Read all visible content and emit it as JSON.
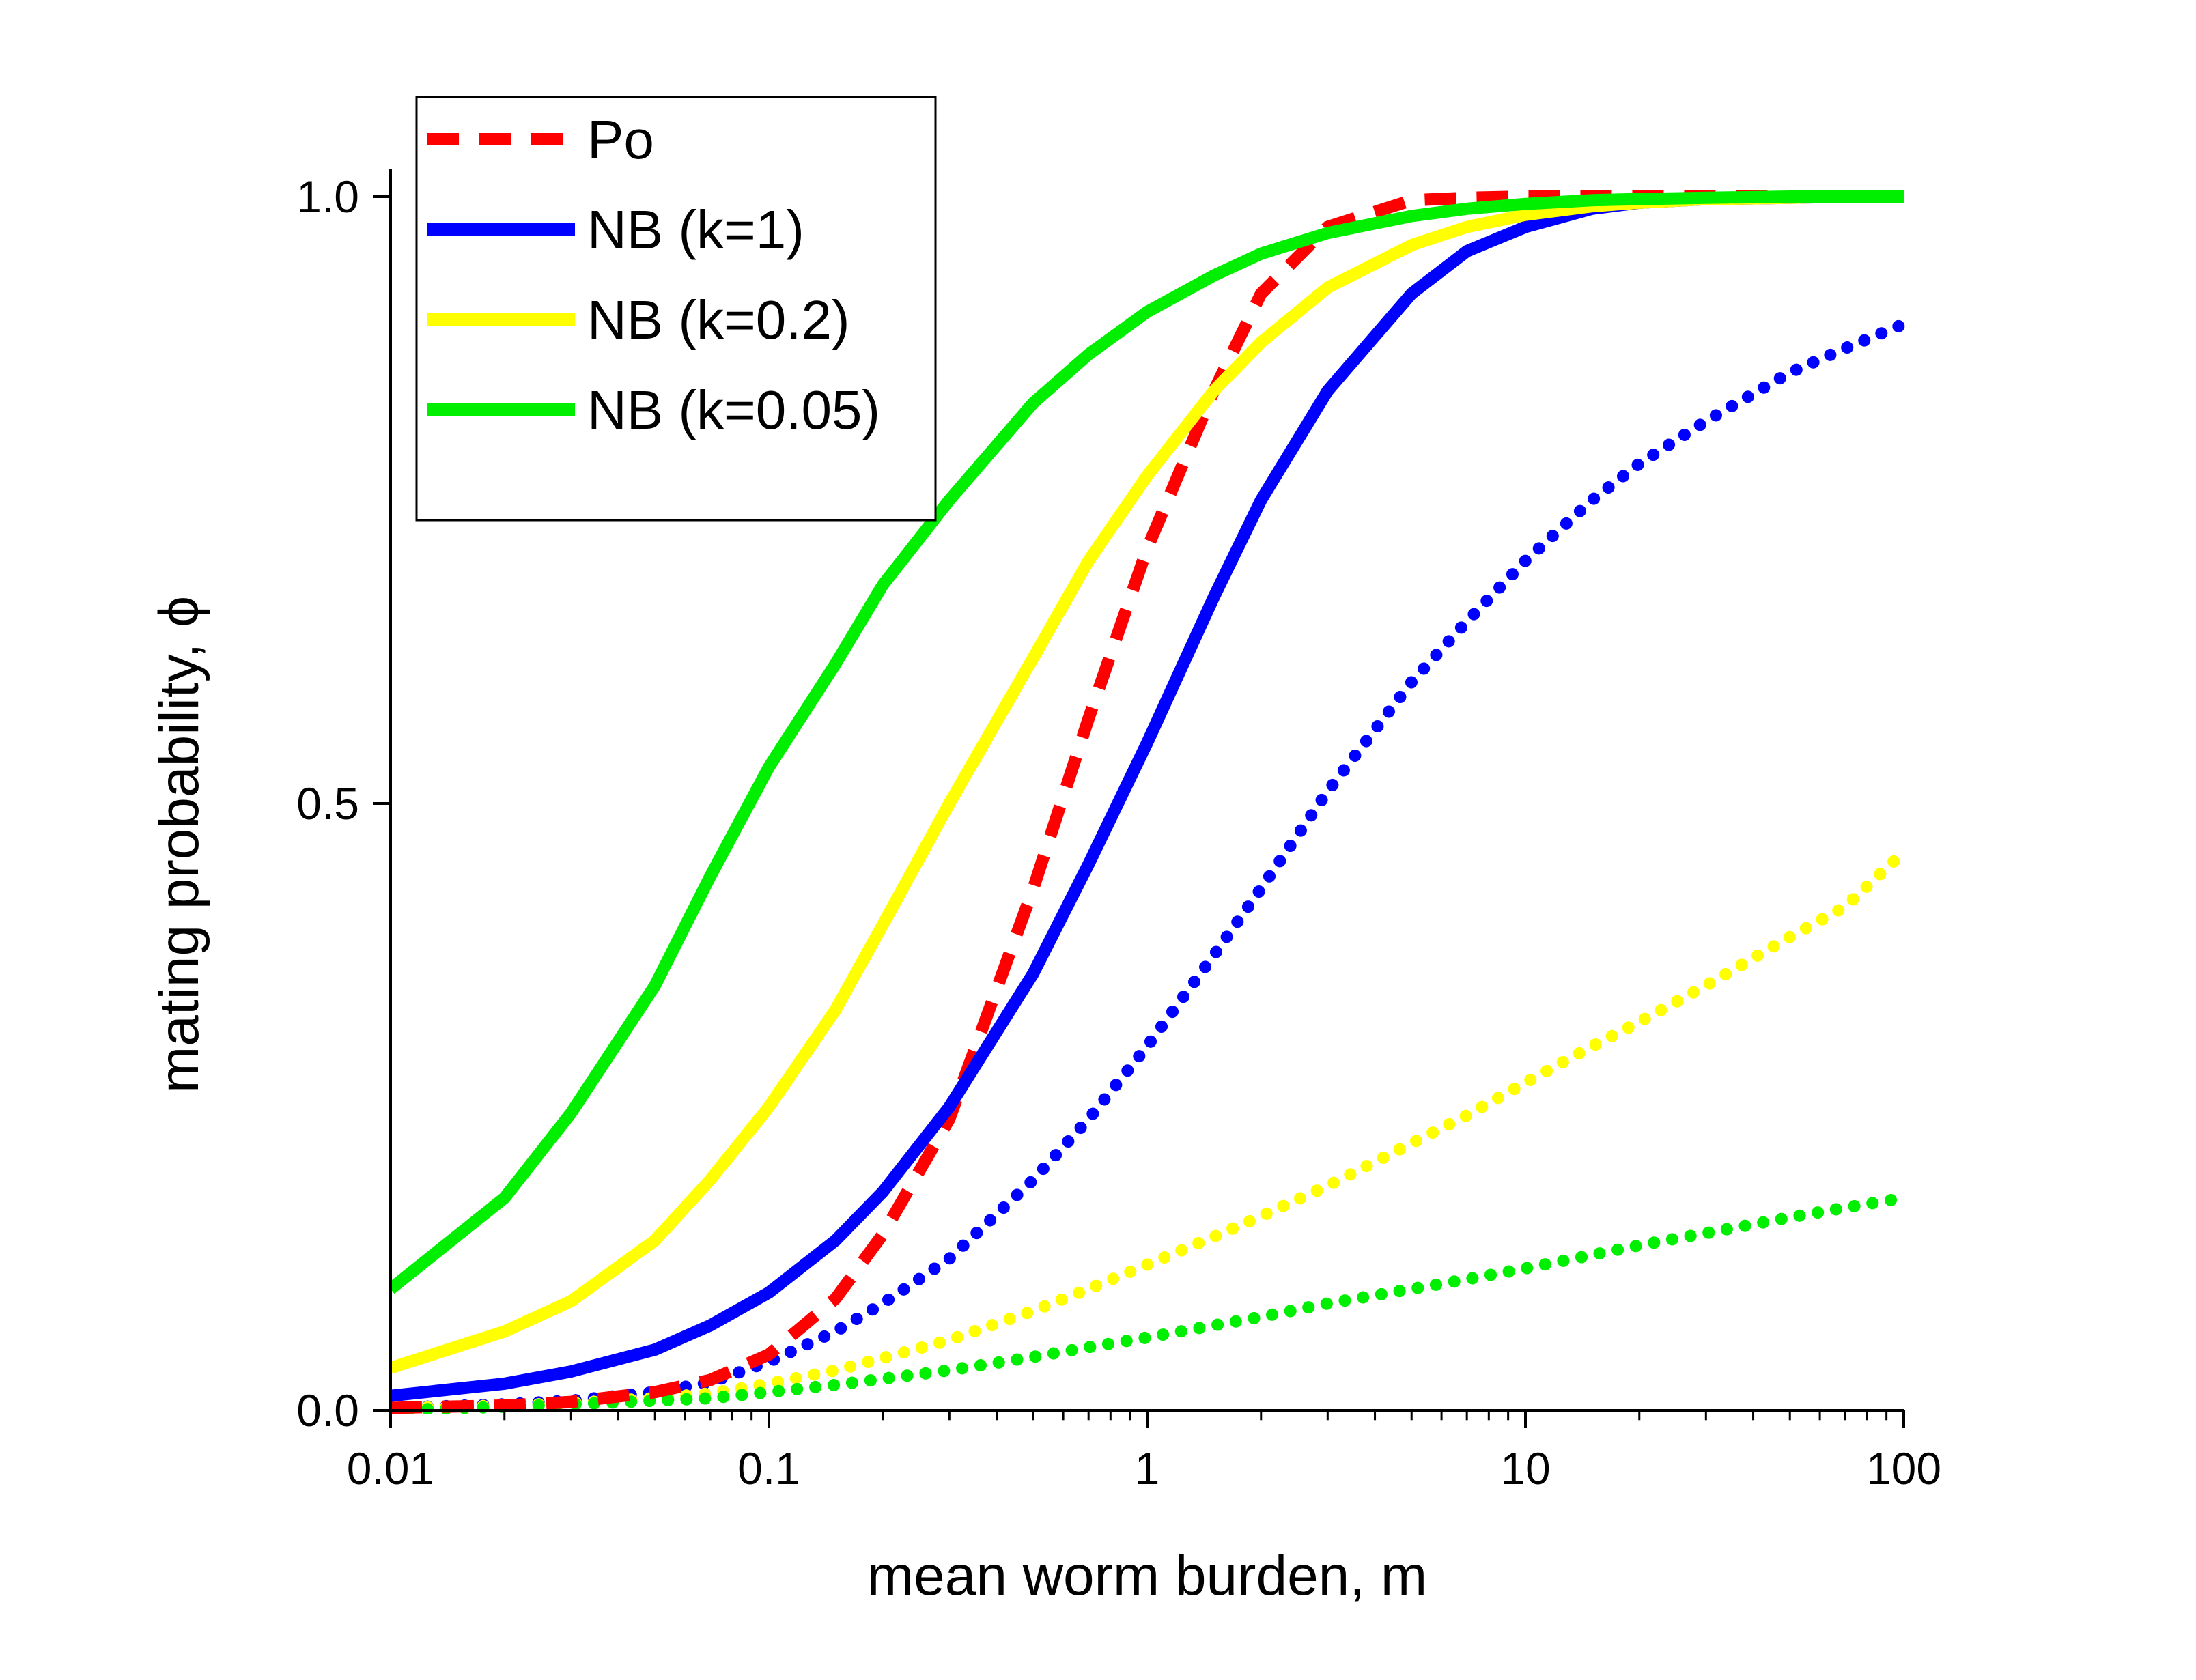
{
  "chart_data": {
    "type": "line",
    "title": "",
    "xlabel": "mean worm burden, m",
    "ylabel": "mating probability, ϕ",
    "xscale": "log",
    "xlim": [
      0.01,
      100
    ],
    "ylim": [
      0,
      1.0
    ],
    "x_ticks": [
      {
        "value": 0.01,
        "label": "0.01"
      },
      {
        "value": 0.1,
        "label": "0.1"
      },
      {
        "value": 1,
        "label": "1"
      },
      {
        "value": 10,
        "label": "10"
      },
      {
        "value": 100,
        "label": "100"
      }
    ],
    "y_ticks": [
      {
        "value": 0.0,
        "label": "0.0"
      },
      {
        "value": 0.5,
        "label": "0.5"
      },
      {
        "value": 1.0,
        "label": "1.0"
      }
    ],
    "grid": false,
    "legend_position": "top-left",
    "x": [
      0.01,
      0.02,
      0.03,
      0.05,
      0.07,
      0.1,
      0.15,
      0.2,
      0.3,
      0.5,
      0.7,
      1,
      1.5,
      2,
      3,
      5,
      7,
      10,
      15,
      20,
      30,
      50,
      70,
      100
    ],
    "series": [
      {
        "name": "Po",
        "legend": true,
        "color": "#ff0000",
        "style": "dashed",
        "values": [
          0.002,
          0.004,
          0.007,
          0.015,
          0.025,
          0.046,
          0.092,
          0.145,
          0.24,
          0.43,
          0.57,
          0.71,
          0.84,
          0.92,
          0.975,
          0.997,
          0.999,
          1.0,
          1.0,
          1.0,
          1.0,
          1.0,
          1.0,
          1.0
        ]
      },
      {
        "name": "NB (k=1)",
        "legend": true,
        "color": "#0000ff",
        "style": "solid",
        "values": [
          0.012,
          0.022,
          0.032,
          0.05,
          0.07,
          0.097,
          0.14,
          0.18,
          0.25,
          0.36,
          0.45,
          0.55,
          0.67,
          0.75,
          0.84,
          0.92,
          0.955,
          0.975,
          0.99,
          0.995,
          0.998,
          0.999,
          1.0,
          1.0
        ]
      },
      {
        "name": "NB (k=0.2)",
        "legend": true,
        "color": "#ffff00",
        "style": "solid",
        "values": [
          0.035,
          0.065,
          0.09,
          0.14,
          0.19,
          0.25,
          0.33,
          0.4,
          0.5,
          0.62,
          0.7,
          0.77,
          0.84,
          0.88,
          0.925,
          0.96,
          0.975,
          0.985,
          0.992,
          0.995,
          0.998,
          0.999,
          1.0,
          1.0
        ]
      },
      {
        "name": "NB (k=0.05)",
        "legend": true,
        "color": "#00ee00",
        "style": "solid",
        "values": [
          0.1,
          0.175,
          0.245,
          0.35,
          0.44,
          0.53,
          0.615,
          0.68,
          0.75,
          0.83,
          0.87,
          0.905,
          0.935,
          0.953,
          0.97,
          0.984,
          0.99,
          0.994,
          0.997,
          0.998,
          0.999,
          1.0,
          1.0,
          1.0
        ]
      },
      {
        "name": "NB (k=1) dotted",
        "legend": false,
        "color": "#0000ff",
        "style": "dotted",
        "values": [
          0.002,
          0.005,
          0.008,
          0.015,
          0.023,
          0.04,
          0.065,
          0.088,
          0.125,
          0.19,
          0.24,
          0.3,
          0.375,
          0.43,
          0.51,
          0.6,
          0.65,
          0.7,
          0.75,
          0.78,
          0.815,
          0.855,
          0.875,
          0.895
        ]
      },
      {
        "name": "NB (k=0.2) dotted",
        "legend": false,
        "color": "#ffff00",
        "style": "dotted",
        "values": [
          0.002,
          0.004,
          0.006,
          0.01,
          0.014,
          0.022,
          0.033,
          0.043,
          0.058,
          0.082,
          0.1,
          0.12,
          0.143,
          0.16,
          0.185,
          0.22,
          0.243,
          0.27,
          0.3,
          0.32,
          0.35,
          0.39,
          0.415,
          0.46
        ]
      },
      {
        "name": "NB (k=0.05) dotted",
        "legend": false,
        "color": "#00ee00",
        "style": "dotted",
        "values": [
          0.0,
          0.003,
          0.005,
          0.008,
          0.01,
          0.015,
          0.021,
          0.026,
          0.033,
          0.044,
          0.052,
          0.06,
          0.07,
          0.077,
          0.088,
          0.1,
          0.108,
          0.117,
          0.128,
          0.136,
          0.146,
          0.159,
          0.167,
          0.175
        ]
      }
    ]
  }
}
